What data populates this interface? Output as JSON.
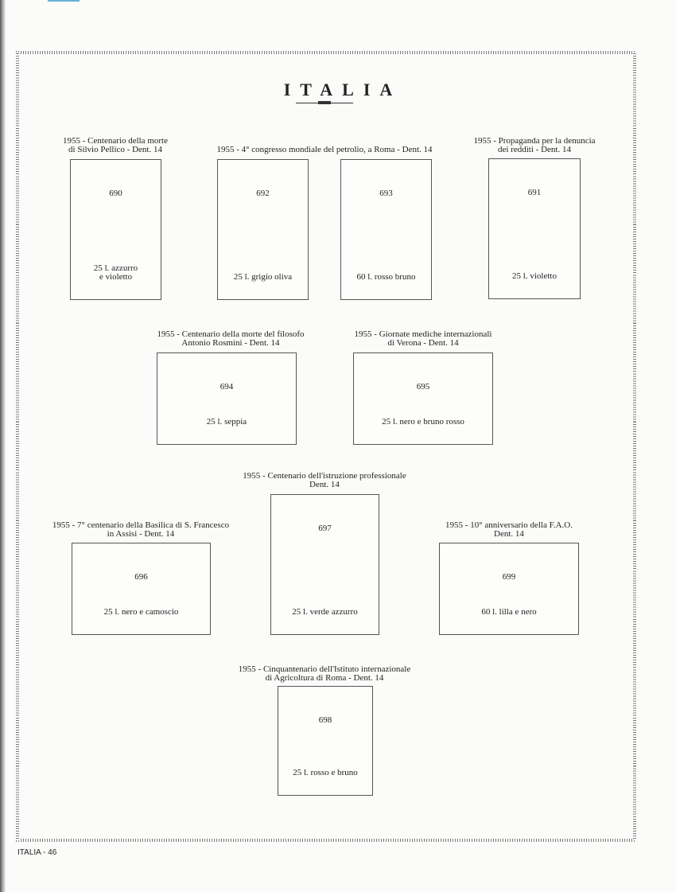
{
  "header": {
    "title": "ITALIA"
  },
  "footer": {
    "page_label": "ITALIA  -  46"
  },
  "captions": [
    {
      "lines": [
        "1955 - Centenario della morte",
        "di Silvio Pellico - Dent. 14"
      ]
    },
    {
      "lines": [
        "1955 - 4° congresso mondiale del petrolio, a Roma - Dent. 14"
      ]
    },
    {
      "lines": [
        "1955 - Propaganda per la denuncia",
        "dei redditi - Dent. 14"
      ]
    },
    {
      "lines": [
        "1955 - Centenario della morte del filosofo",
        "Antonio Rosmini - Dent. 14"
      ]
    },
    {
      "lines": [
        "1955 - Giornate mediche internazionali",
        "di Verona - Dent. 14"
      ]
    },
    {
      "lines": [
        "1955 - Centenario dell'istruzione professionale",
        "Dent. 14"
      ]
    },
    {
      "lines": [
        "1955 - 7° centenario della Basilica di S. Francesco",
        "in Assisi - Dent. 14"
      ]
    },
    {
      "lines": [
        "1955 - 10° anniversario della F.A.O.",
        "Dent. 14"
      ]
    },
    {
      "lines": [
        "1955 - Cinquantenario dell'Istituto internazionale",
        "di Agricoltura di Roma - Dent. 14"
      ]
    }
  ],
  "stamps": [
    {
      "number": "690",
      "value": [
        "25 l. azzurro",
        "e violetto"
      ]
    },
    {
      "number": "692",
      "value": [
        "25 l. grigio oliva"
      ]
    },
    {
      "number": "693",
      "value": [
        "60 l. rosso bruno"
      ]
    },
    {
      "number": "691",
      "value": [
        "25 l. violetto"
      ]
    },
    {
      "number": "694",
      "value": [
        "25 l. seppia"
      ]
    },
    {
      "number": "695",
      "value": [
        "25 l. nero e bruno rosso"
      ]
    },
    {
      "number": "697",
      "value": [
        "25 l. verde azzurro"
      ]
    },
    {
      "number": "696",
      "value": [
        "25 l. nero e  camoscio"
      ]
    },
    {
      "number": "699",
      "value": [
        "60 l. lilla e nero"
      ]
    },
    {
      "number": "698",
      "value": [
        "25 l. rosso e bruno"
      ]
    }
  ]
}
